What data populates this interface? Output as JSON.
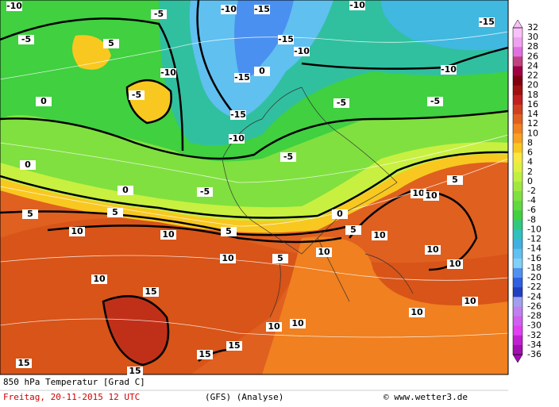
{
  "map": {
    "title": "850 hPa Temperatur [Grad C]",
    "date": "Freitag, 20-11-2015  12 UTC",
    "model": "(GFS)  (Analyse)",
    "credit": "© www.wetter3.de",
    "colorbar": {
      "labels": [
        32,
        30,
        28,
        26,
        24,
        22,
        20,
        18,
        16,
        14,
        12,
        10,
        8,
        6,
        4,
        2,
        0,
        -2,
        -4,
        -6,
        -8,
        -10,
        -12,
        -14,
        -16,
        -18,
        -20,
        -22,
        -24,
        -26,
        -28,
        -30,
        -32,
        -34,
        -36
      ],
      "colors": [
        "#f8c0f8",
        "#f0a0f0",
        "#e070e0",
        "#c04080",
        "#a00040",
        "#800010",
        "#a01010",
        "#c02020",
        "#d04020",
        "#e06020",
        "#f08020",
        "#f8a020",
        "#f8c820",
        "#f8e840",
        "#e0f040",
        "#c0f040",
        "#a0e840",
        "#80e040",
        "#60d840",
        "#40d040",
        "#30c880",
        "#30c0c0",
        "#40b0e0",
        "#60c0f0",
        "#80d0f8",
        "#5090f0",
        "#3060e0",
        "#2040c0",
        "#a0a0f0",
        "#c080f0",
        "#d060f0",
        "#e040f0",
        "#c020d0",
        "#a010b0"
      ]
    },
    "contour_labels": [
      -10,
      -10,
      -15,
      -15,
      -15,
      -15,
      -10,
      -10,
      -15,
      -10,
      -5,
      -5,
      5,
      -5,
      0,
      -5,
      -5,
      0,
      0,
      -5,
      0,
      5,
      5,
      10,
      10,
      5,
      5,
      0,
      10,
      10,
      5,
      10,
      10,
      10,
      10,
      10,
      10,
      15,
      10,
      10,
      10,
      10,
      15,
      15,
      15,
      15,
      -5,
      5,
      -10,
      -10
    ]
  }
}
